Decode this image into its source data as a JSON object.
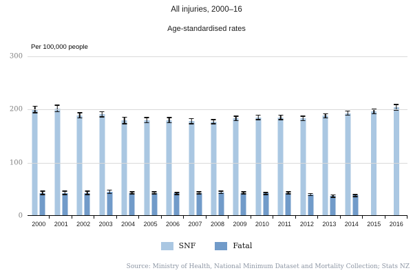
{
  "title": "All injuries, 2000–16",
  "subtitle": "Age-standardised rates",
  "source": "Source: Ministry of Health, National Minimum Dataset and Mortality Collection; Stats NZ",
  "legend": {
    "items": [
      {
        "label": "SNF",
        "color": "#aac7e2"
      },
      {
        "label": "Fatal",
        "color": "#719bc9"
      }
    ]
  },
  "chart_data": {
    "type": "bar",
    "title": "All injuries, 2000–16",
    "subtitle": "Age-standardised rates",
    "ylabel": "Per 100,000 people",
    "xlabel": "",
    "categories": [
      "2000",
      "2001",
      "2002",
      "2003",
      "2004",
      "2005",
      "2006",
      "2007",
      "2008",
      "2009",
      "2010",
      "2011",
      "2012",
      "2013",
      "2014",
      "2015",
      "2016"
    ],
    "series": [
      {
        "name": "SNF",
        "color": "#aac7e2",
        "values": [
          199,
          201,
          188,
          190,
          178,
          179,
          179,
          177,
          176,
          182,
          184,
          184,
          182,
          187,
          192,
          195,
          203
        ],
        "errors": [
          7,
          7,
          6,
          6,
          7,
          6,
          6,
          6,
          5,
          5,
          5,
          5,
          5,
          5,
          5,
          5,
          6
        ]
      },
      {
        "name": "Fatal",
        "color": "#719bc9",
        "values": [
          42,
          42,
          42,
          44,
          42,
          42,
          41,
          42,
          43,
          42,
          41,
          42,
          39,
          36,
          37,
          null,
          null
        ],
        "errors": [
          4,
          4,
          4,
          4,
          3,
          3,
          3,
          3,
          3,
          3,
          3,
          3,
          3,
          3,
          3,
          null,
          null
        ]
      }
    ],
    "ylim": [
      0,
      300
    ],
    "yticks": [
      300,
      200,
      100,
      0
    ],
    "grid": "horizontal",
    "error_bars": true,
    "error_bar_color": "#111111",
    "legend_position": "bottom"
  }
}
